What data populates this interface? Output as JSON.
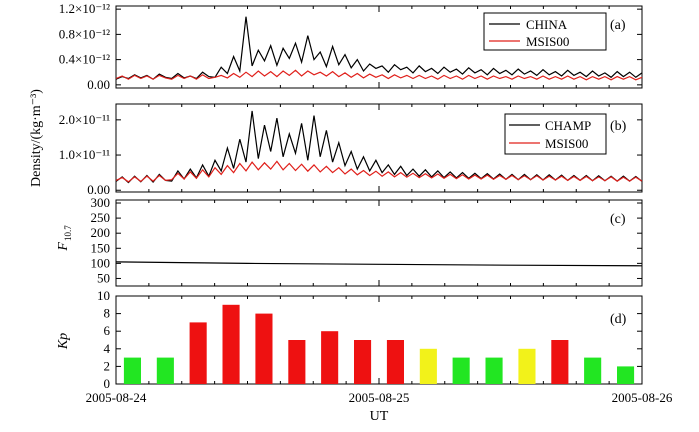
{
  "chart_data": [
    {
      "panel": "(a)",
      "type": "line",
      "yticks": [
        0.0,
        0.4,
        0.8,
        1.2
      ],
      "ytick_labels": [
        "0.00",
        "0.4×10⁻¹²",
        "0.8×10⁻¹²",
        "1.2×10⁻¹²"
      ],
      "ylim": [
        -5e-14,
        1.25e-12
      ],
      "xlim": [
        0,
        2
      ],
      "legend": [
        "CHINA",
        "MSIS00"
      ],
      "series": [
        {
          "name": "CHINA",
          "color": "#000000",
          "samples_per_day": 17,
          "values": [
            0.09,
            0.13,
            0.1,
            0.16,
            0.11,
            0.15,
            0.09,
            0.17,
            0.12,
            0.1,
            0.18,
            0.11,
            0.14,
            0.1,
            0.2,
            0.13,
            0.12,
            0.28,
            0.18,
            0.45,
            0.22,
            1.08,
            0.3,
            0.55,
            0.38,
            0.62,
            0.31,
            0.58,
            0.42,
            0.66,
            0.36,
            0.78,
            0.4,
            0.52,
            0.29,
            0.61,
            0.32,
            0.48,
            0.27,
            0.4,
            0.22,
            0.33,
            0.26,
            0.3,
            0.2,
            0.32,
            0.24,
            0.28,
            0.19,
            0.3,
            0.21,
            0.26,
            0.18,
            0.28,
            0.2,
            0.25,
            0.17,
            0.27,
            0.19,
            0.24,
            0.16,
            0.26,
            0.18,
            0.23,
            0.16,
            0.25,
            0.17,
            0.22,
            0.15,
            0.24,
            0.16,
            0.21,
            0.14,
            0.23,
            0.15,
            0.2,
            0.13,
            0.22,
            0.14,
            0.19,
            0.12,
            0.21,
            0.13,
            0.2,
            0.12,
            0.19
          ],
          "note": ""
        },
        {
          "name": "MSIS00",
          "color": "#e0201b",
          "values": [
            0.1,
            0.14,
            0.09,
            0.15,
            0.1,
            0.14,
            0.09,
            0.15,
            0.11,
            0.09,
            0.15,
            0.1,
            0.14,
            0.09,
            0.16,
            0.1,
            0.12,
            0.15,
            0.11,
            0.18,
            0.12,
            0.2,
            0.13,
            0.22,
            0.14,
            0.21,
            0.13,
            0.22,
            0.15,
            0.23,
            0.14,
            0.22,
            0.16,
            0.2,
            0.14,
            0.21,
            0.13,
            0.19,
            0.12,
            0.18,
            0.11,
            0.17,
            0.12,
            0.16,
            0.1,
            0.16,
            0.11,
            0.15,
            0.1,
            0.15,
            0.1,
            0.14,
            0.09,
            0.15,
            0.1,
            0.14,
            0.09,
            0.15,
            0.1,
            0.14,
            0.09,
            0.14,
            0.1,
            0.13,
            0.09,
            0.14,
            0.1,
            0.13,
            0.09,
            0.14,
            0.09,
            0.13,
            0.09,
            0.14,
            0.09,
            0.13,
            0.08,
            0.13,
            0.09,
            0.13,
            0.08,
            0.13,
            0.09,
            0.13,
            0.08,
            0.12
          ]
        }
      ]
    },
    {
      "panel": "(b)",
      "type": "line",
      "yticks": [
        0.0,
        1.0,
        2.0
      ],
      "ytick_labels": [
        "0.00",
        "1.0×10⁻¹¹",
        "2.0×10⁻¹¹"
      ],
      "ylim": [
        -5e-13,
        2.45e-11
      ],
      "xlim": [
        0,
        2
      ],
      "legend": [
        "CHAMP",
        "MSIS00"
      ],
      "series": [
        {
          "name": "CHAMP",
          "color": "#000000",
          "values": [
            0.25,
            0.38,
            0.22,
            0.4,
            0.24,
            0.42,
            0.23,
            0.45,
            0.28,
            0.26,
            0.55,
            0.32,
            0.6,
            0.35,
            0.72,
            0.4,
            0.85,
            0.55,
            1.2,
            0.62,
            1.45,
            0.8,
            2.25,
            0.9,
            1.85,
            1.1,
            2.05,
            0.95,
            1.6,
            1.05,
            1.9,
            0.85,
            2.12,
            0.95,
            1.7,
            0.8,
            1.35,
            0.7,
            1.1,
            0.6,
            0.95,
            0.55,
            0.85,
            0.5,
            0.72,
            0.45,
            0.68,
            0.42,
            0.6,
            0.4,
            0.58,
            0.38,
            0.55,
            0.36,
            0.52,
            0.35,
            0.5,
            0.34,
            0.48,
            0.33,
            0.47,
            0.32,
            0.46,
            0.31,
            0.45,
            0.3,
            0.45,
            0.3,
            0.44,
            0.29,
            0.44,
            0.29,
            0.43,
            0.28,
            0.42,
            0.28,
            0.42,
            0.27,
            0.41,
            0.27,
            0.4,
            0.26,
            0.4,
            0.26,
            0.39,
            0.25
          ]
        },
        {
          "name": "MSIS00",
          "color": "#e0201b",
          "values": [
            0.28,
            0.36,
            0.24,
            0.38,
            0.25,
            0.4,
            0.26,
            0.42,
            0.28,
            0.3,
            0.48,
            0.32,
            0.52,
            0.34,
            0.58,
            0.38,
            0.64,
            0.45,
            0.7,
            0.5,
            0.76,
            0.55,
            0.8,
            0.58,
            0.78,
            0.6,
            0.82,
            0.58,
            0.76,
            0.56,
            0.74,
            0.54,
            0.72,
            0.52,
            0.68,
            0.5,
            0.64,
            0.46,
            0.6,
            0.44,
            0.56,
            0.42,
            0.54,
            0.4,
            0.52,
            0.38,
            0.5,
            0.37,
            0.48,
            0.36,
            0.47,
            0.35,
            0.46,
            0.34,
            0.45,
            0.33,
            0.44,
            0.32,
            0.43,
            0.32,
            0.43,
            0.31,
            0.42,
            0.31,
            0.42,
            0.3,
            0.41,
            0.3,
            0.41,
            0.29,
            0.4,
            0.29,
            0.4,
            0.28,
            0.39,
            0.28,
            0.39,
            0.27,
            0.38,
            0.27,
            0.38,
            0.26,
            0.37,
            0.26,
            0.37,
            0.26
          ]
        }
      ]
    },
    {
      "panel": "(c)",
      "type": "line",
      "yticks": [
        50,
        100,
        150,
        200,
        250,
        300
      ],
      "ylim": [
        25,
        310
      ],
      "xlim": [
        0,
        2
      ],
      "series": [
        {
          "color": "#000000",
          "x": [
            0,
            0.5,
            1.0,
            1.5,
            2.0
          ],
          "values": [
            105,
            100,
            97,
            94,
            92
          ]
        }
      ]
    },
    {
      "panel": "(d)",
      "type": "bar",
      "yticks": [
        0,
        2,
        4,
        6,
        8,
        10
      ],
      "ylim": [
        0,
        10
      ],
      "xlim": [
        0,
        2
      ],
      "bar_width_days": 0.0833,
      "bars": [
        {
          "x": 0.0625,
          "value": 3,
          "color": "#22e622"
        },
        {
          "x": 0.1875,
          "value": 3,
          "color": "#22e622"
        },
        {
          "x": 0.3125,
          "value": 7,
          "color": "#ee1111"
        },
        {
          "x": 0.4375,
          "value": 9,
          "color": "#ee1111"
        },
        {
          "x": 0.5625,
          "value": 8,
          "color": "#ee1111"
        },
        {
          "x": 0.6875,
          "value": 5,
          "color": "#ee1111"
        },
        {
          "x": 0.8125,
          "value": 6,
          "color": "#ee1111"
        },
        {
          "x": 0.9375,
          "value": 5,
          "color": "#ee1111"
        },
        {
          "x": 1.0625,
          "value": 5,
          "color": "#ee1111"
        },
        {
          "x": 1.1875,
          "value": 4,
          "color": "#f2f21a"
        },
        {
          "x": 1.3125,
          "value": 3,
          "color": "#22e622"
        },
        {
          "x": 1.4375,
          "value": 3,
          "color": "#22e622"
        },
        {
          "x": 1.5625,
          "value": 4,
          "color": "#f2f21a"
        },
        {
          "x": 1.6875,
          "value": 5,
          "color": "#ee1111"
        },
        {
          "x": 1.8125,
          "value": 3,
          "color": "#22e622"
        },
        {
          "x": 1.9375,
          "value": 2,
          "color": "#22e622"
        }
      ]
    }
  ],
  "labels": {
    "ylabel_density": "Density/(kg·m⁻³)",
    "ylabel_f107_main": "F",
    "ylabel_f107_sub": "10.7",
    "ylabel_kp": "Kp",
    "xlabel": "UT",
    "xtick_labels": [
      "2005-08-24",
      "2005-08-25",
      "2005-08-26"
    ],
    "panel_a": "(a)",
    "panel_b": "(b)",
    "panel_c": "(c)",
    "panel_d": "(d)",
    "legend_a1": "CHINA",
    "legend_a2": "MSIS00",
    "legend_b1": "CHAMP",
    "legend_b2": "MSIS00"
  }
}
